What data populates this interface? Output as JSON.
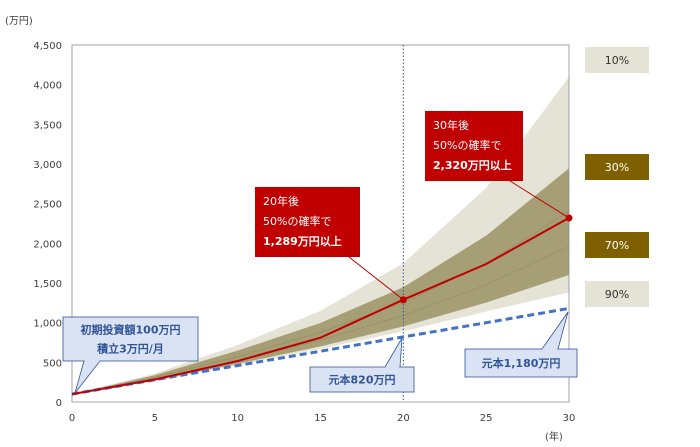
{
  "chart_data": {
    "type": "area",
    "title": "",
    "xlabel": "(年)",
    "ylabel": "(万円)",
    "xlim": [
      0,
      30
    ],
    "ylim": [
      0,
      4500
    ],
    "x_ticks": [
      "0",
      "5",
      "10",
      "15",
      "20",
      "25",
      "30"
    ],
    "y_ticks": [
      "0",
      "500",
      "1,000",
      "1,500",
      "2,000",
      "2,500",
      "3,000",
      "3,500",
      "4,000",
      "4,500"
    ],
    "x": [
      0,
      5,
      10,
      15,
      20,
      25,
      30
    ],
    "series": [
      {
        "values": [
          100,
          310,
          570,
          880,
          1250,
          1750,
          2400
        ]
      },
      {
        "values": [
          100,
          290,
          520,
          780,
          1090,
          1480,
          1960
        ]
      },
      {
        "values": [
          100,
          270,
          480,
          700,
          950,
          1250,
          1600
        ]
      },
      {
        "values": [
          100,
          260,
          460,
          670,
          890,
          1140,
          1380
        ]
      },
      {
        "values": [
          100,
          340,
          650,
          1000,
          1450,
          2100,
          2950
        ]
      },
      {
        "values": [
          100,
          360,
          720,
          1150,
          1750,
          2700,
          4100
        ]
      },
      {
        "values": [
          100,
          283,
          517,
          810,
          1289,
          1740,
          2320
        ]
      },
      {
        "values": [
          100,
          280,
          460,
          640,
          820,
          1000,
          1180
        ]
      }
    ],
    "vertical_line_x": 20,
    "bands": [
      {
        "label": "10%",
        "color": "#e5e3d6"
      },
      {
        "label": "30%",
        "color": "#7f6000"
      },
      {
        "label": "70%",
        "color": "#7f6000"
      },
      {
        "label": "90%",
        "color": "#e5e3d6"
      }
    ],
    "callouts": [
      {
        "lines": [
          "20年後",
          "50%の確率で",
          "1,289万円以上"
        ],
        "point": [
          20,
          1289
        ]
      },
      {
        "lines": [
          "30年後",
          "50%の確率で",
          "2,320万円以上"
        ],
        "point": [
          30,
          2320
        ]
      }
    ],
    "notes": [
      {
        "lines": [
          "初期投資額100万円",
          "積立3万円/月"
        ]
      },
      {
        "lines": [
          "元本820万円"
        ]
      },
      {
        "lines": [
          "元本1,180万円"
        ]
      }
    ]
  },
  "colors": {
    "outer_band": "#e5e3d6",
    "inner_band": "#a69f76",
    "median_line": "#c00000",
    "principal_line": "#4472c4",
    "callout_bg": "#c00000",
    "note_bg": "#dae3f3",
    "note_border": "#2f5597",
    "band_dark": "#7f6000",
    "band_light": "#e5e3d6"
  }
}
